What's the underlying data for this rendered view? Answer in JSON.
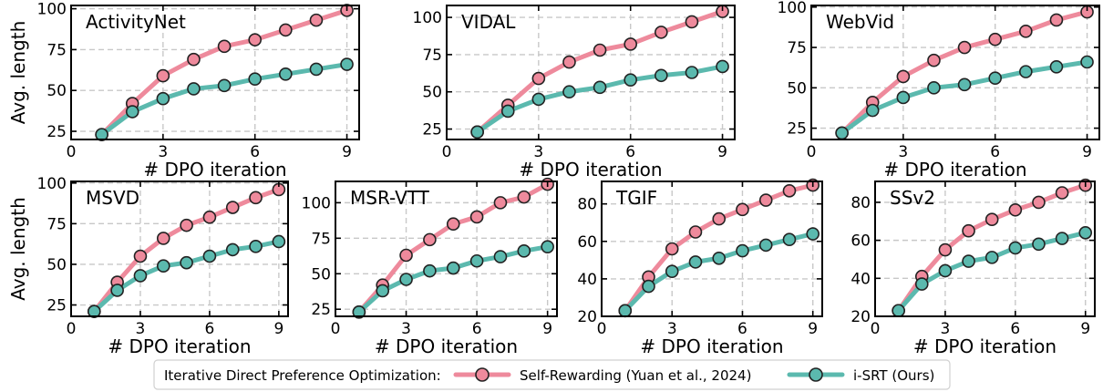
{
  "legend": {
    "title": "Iterative Direct Preference Optimization:",
    "location": "bottom-center"
  },
  "colors": {
    "self_rewarding": "#ee8a9c",
    "isrt": "#5bb9ae",
    "marker_edge": "#222222",
    "grid": "#c8c8c8"
  },
  "chart_data": [
    {
      "type": "line",
      "title": "ActivityNet",
      "xlabel": "# DPO iteration",
      "ylabel": "Avg. length",
      "xlim": [
        0,
        9.4
      ],
      "ylim": [
        20,
        102
      ],
      "xticks": [
        0,
        3,
        6,
        9
      ],
      "yticks": [
        25,
        50,
        75,
        100
      ],
      "grid": true,
      "x": [
        1,
        2,
        3,
        4,
        5,
        6,
        7,
        8,
        9
      ],
      "series": [
        {
          "name": "Self-Rewarding (Yuan et al., 2024)",
          "values": [
            23,
            42,
            59,
            69,
            77,
            81,
            87,
            93,
            99
          ]
        },
        {
          "name": "i-SRT (Ours)",
          "values": [
            23,
            37,
            45,
            51,
            53,
            57,
            60,
            63,
            66
          ]
        }
      ]
    },
    {
      "type": "line",
      "title": "VIDAL",
      "xlabel": "# DPO iteration",
      "ylabel": "",
      "xlim": [
        0,
        9.4
      ],
      "ylim": [
        18,
        108
      ],
      "xticks": [
        0,
        3,
        6,
        9
      ],
      "yticks": [
        25,
        50,
        75,
        100
      ],
      "grid": true,
      "x": [
        1,
        2,
        3,
        4,
        5,
        6,
        7,
        8,
        9
      ],
      "series": [
        {
          "name": "Self-Rewarding (Yuan et al., 2024)",
          "values": [
            23,
            41,
            59,
            70,
            78,
            82,
            90,
            97,
            104
          ]
        },
        {
          "name": "i-SRT (Ours)",
          "values": [
            23,
            37,
            45,
            50,
            53,
            58,
            61,
            63,
            67
          ]
        }
      ]
    },
    {
      "type": "line",
      "title": "WebVid",
      "xlabel": "# DPO iteration",
      "ylabel": "",
      "xlim": [
        0,
        9.4
      ],
      "ylim": [
        18,
        101
      ],
      "xticks": [
        0,
        3,
        6,
        9
      ],
      "yticks": [
        25,
        50,
        75,
        100
      ],
      "grid": true,
      "x": [
        1,
        2,
        3,
        4,
        5,
        6,
        7,
        8,
        9
      ],
      "series": [
        {
          "name": "Self-Rewarding (Yuan et al., 2024)",
          "values": [
            22,
            41,
            57,
            67,
            75,
            80,
            85,
            92,
            97
          ]
        },
        {
          "name": "i-SRT (Ours)",
          "values": [
            22,
            36,
            44,
            50,
            52,
            56,
            60,
            63,
            66
          ]
        }
      ]
    },
    {
      "type": "line",
      "title": "MSVD",
      "xlabel": "# DPO iteration",
      "ylabel": "Avg. length",
      "xlim": [
        0,
        9.4
      ],
      "ylim": [
        18,
        101
      ],
      "xticks": [
        0,
        3,
        6,
        9
      ],
      "yticks": [
        25,
        50,
        75,
        100
      ],
      "grid": true,
      "x": [
        1,
        2,
        3,
        4,
        5,
        6,
        7,
        8,
        9
      ],
      "series": [
        {
          "name": "Self-Rewarding (Yuan et al., 2024)",
          "values": [
            21,
            39,
            55,
            66,
            74,
            79,
            85,
            91,
            96
          ]
        },
        {
          "name": "i-SRT (Ours)",
          "values": [
            21,
            34,
            43,
            49,
            51,
            55,
            59,
            61,
            64
          ]
        }
      ]
    },
    {
      "type": "line",
      "title": "MSR-VTT",
      "xlabel": "# DPO iteration",
      "ylabel": "",
      "xlim": [
        0,
        9.4
      ],
      "ylim": [
        20,
        115
      ],
      "xticks": [
        0,
        3,
        6,
        9
      ],
      "yticks": [
        25,
        50,
        75,
        100
      ],
      "grid": true,
      "x": [
        1,
        2,
        3,
        4,
        5,
        6,
        7,
        8,
        9
      ],
      "series": [
        {
          "name": "Self-Rewarding (Yuan et al., 2024)",
          "values": [
            23,
            42,
            63,
            74,
            85,
            90,
            100,
            104,
            113
          ]
        },
        {
          "name": "i-SRT (Ours)",
          "values": [
            23,
            38,
            46,
            52,
            54,
            59,
            62,
            66,
            69
          ]
        }
      ]
    },
    {
      "type": "line",
      "title": "TGIF",
      "xlabel": "# DPO iteration",
      "ylabel": "",
      "xlim": [
        0,
        9.4
      ],
      "ylim": [
        20,
        92
      ],
      "xticks": [
        0,
        3,
        6,
        9
      ],
      "yticks": [
        20,
        40,
        60,
        80
      ],
      "grid": true,
      "x": [
        1,
        2,
        3,
        4,
        5,
        6,
        7,
        8,
        9
      ],
      "series": [
        {
          "name": "Self-Rewarding (Yuan et al., 2024)",
          "values": [
            23,
            41,
            56,
            65,
            72,
            77,
            82,
            87,
            90
          ]
        },
        {
          "name": "i-SRT (Ours)",
          "values": [
            23,
            36,
            44,
            49,
            51,
            55,
            58,
            61,
            64
          ]
        }
      ]
    },
    {
      "type": "line",
      "title": "SSv2",
      "xlabel": "# DPO iteration",
      "ylabel": "",
      "xlim": [
        0,
        9.4
      ],
      "ylim": [
        20,
        91
      ],
      "xticks": [
        0,
        3,
        6,
        9
      ],
      "yticks": [
        20,
        40,
        60,
        80
      ],
      "grid": true,
      "x": [
        1,
        2,
        3,
        4,
        5,
        6,
        7,
        8,
        9
      ],
      "series": [
        {
          "name": "Self-Rewarding (Yuan et al., 2024)",
          "values": [
            23,
            41,
            55,
            65,
            71,
            76,
            80,
            85,
            89
          ]
        },
        {
          "name": "i-SRT (Ours)",
          "values": [
            23,
            37,
            44,
            49,
            51,
            56,
            58,
            61,
            64
          ]
        }
      ]
    }
  ]
}
